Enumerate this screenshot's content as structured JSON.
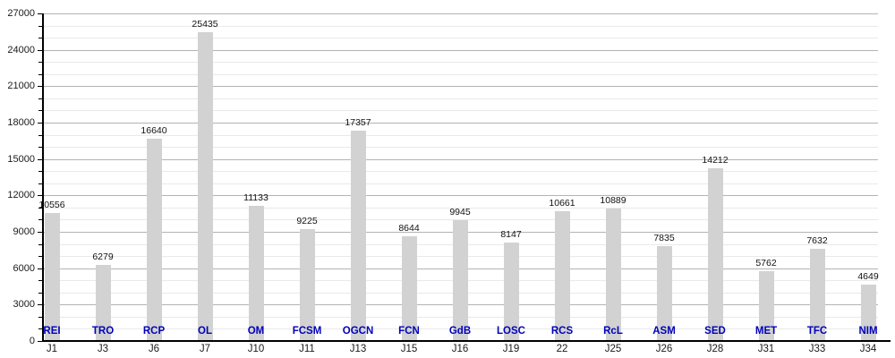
{
  "chart_data": {
    "type": "bar",
    "title": "",
    "xlabel": "",
    "ylabel": "",
    "categories": [
      "J1",
      "J3",
      "J6",
      "J7",
      "J10",
      "J11",
      "J13",
      "J15",
      "J16",
      "J19",
      "22",
      "J25",
      "J26",
      "J28",
      "J31",
      "J33",
      "J34"
    ],
    "bar_labels": [
      "REI",
      "TRO",
      "RCP",
      "OL",
      "OM",
      "FCSM",
      "OGCN",
      "FCN",
      "GdB",
      "LOSC",
      "RCS",
      "RcL",
      "ASM",
      "SED",
      "MET",
      "TFC",
      "NIM"
    ],
    "values": [
      10556,
      6279,
      16640,
      25435,
      11133,
      9225,
      17357,
      8644,
      9945,
      8147,
      10661,
      10889,
      7835,
      14212,
      5762,
      7632,
      4649
    ],
    "value_labels": [
      "10556",
      "6279",
      "16640",
      "25435",
      "11133",
      "9225",
      "17357",
      "8644",
      "9945",
      "8147",
      "10661",
      "10889",
      "7835",
      "14212",
      "5762",
      "7632",
      "4649"
    ],
    "ylim": [
      0,
      27000
    ],
    "y_major_step": 3000,
    "y_minor_step": 1000,
    "y_tick_labels": [
      "0",
      "3000",
      "6000",
      "9000",
      "12000",
      "15000",
      "18000",
      "21000",
      "24000",
      "27000"
    ],
    "grid": true,
    "legend": false,
    "colors": {
      "bar_fill": "#d2d2d2",
      "major_gridline": "#b3b3b3",
      "minor_gridline": "#e9e9e9",
      "axis": "#000000",
      "value_label": "#111111",
      "team_label": "#0000bb",
      "axis_tick_label": "#1a1a1a",
      "background": "#ffffff"
    }
  }
}
